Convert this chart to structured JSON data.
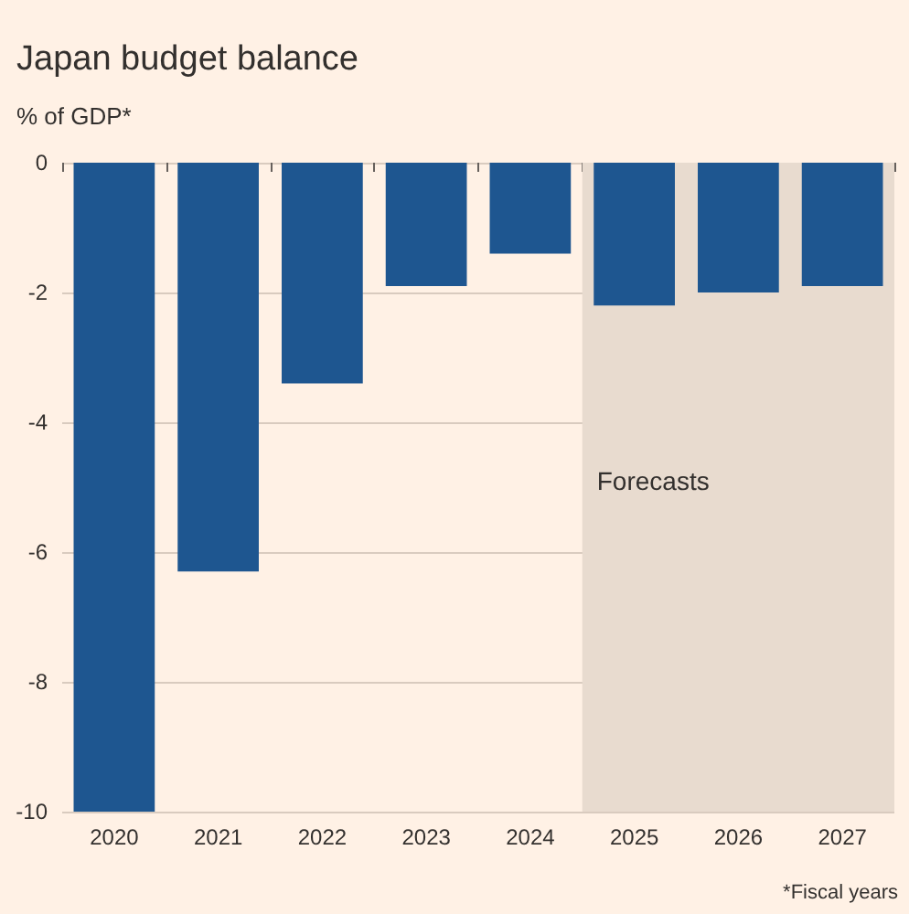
{
  "chart_data": {
    "type": "bar",
    "title": "Japan budget balance",
    "subtitle": "% of GDP*",
    "categories": [
      "2020",
      "2021",
      "2022",
      "2023",
      "2024",
      "2025",
      "2026",
      "2027"
    ],
    "values": [
      -10,
      -6.3,
      -3.4,
      -1.9,
      -1.4,
      -2.2,
      -2.0,
      -1.9
    ],
    "color": "#1e5690",
    "ylim": [
      -10,
      0
    ],
    "yticks": [
      0,
      -2,
      -4,
      -6,
      -8,
      -10
    ],
    "grid": "y",
    "bands": [
      {
        "axis": "x",
        "from": "2025",
        "to": "2027",
        "label": "Forecasts",
        "color": "#e8dbcf"
      }
    ],
    "annotations": [
      "*Fiscal years"
    ]
  }
}
